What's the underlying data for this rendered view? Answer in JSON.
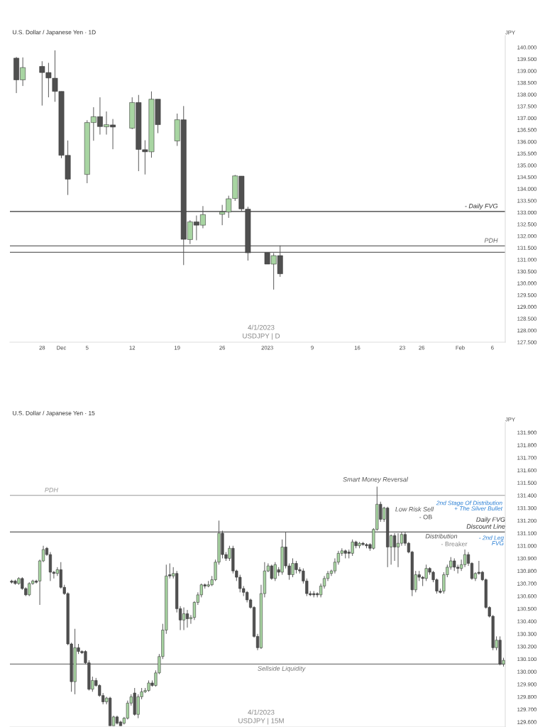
{
  "chart_data": [
    {
      "type": "candlestick",
      "title": "U.S. Dollar / Japanese Yen · 1D",
      "ylabel": "JPY",
      "x": [
        "2022-11-24",
        "2022-11-25",
        "2022-11-28",
        "2022-11-29",
        "2022-11-30",
        "2022-12-01",
        "2022-12-02",
        "2022-12-05",
        "2022-12-06",
        "2022-12-07",
        "2022-12-08",
        "2022-12-09",
        "2022-12-12",
        "2022-12-13",
        "2022-12-14",
        "2022-12-15",
        "2022-12-16",
        "2022-12-19",
        "2022-12-20",
        "2022-12-21",
        "2022-12-22",
        "2022-12-23",
        "2022-12-26",
        "2022-12-27",
        "2022-12-28",
        "2022-12-29",
        "2022-12-30",
        "2023-01-02",
        "2023-01-03",
        "2023-01-04"
      ],
      "ohlc": [
        [
          139.54,
          139.59,
          138.06,
          138.62
        ],
        [
          138.62,
          139.57,
          138.36,
          139.14
        ],
        [
          139.19,
          139.41,
          137.53,
          138.93
        ],
        [
          138.93,
          139.34,
          137.88,
          138.7
        ],
        [
          138.69,
          139.87,
          137.69,
          138.13
        ],
        [
          138.13,
          138.13,
          135.3,
          135.42
        ],
        [
          135.42,
          136.05,
          133.74,
          134.41
        ],
        [
          134.61,
          136.91,
          134.24,
          136.81
        ],
        [
          136.81,
          137.46,
          136.04,
          137.06
        ],
        [
          137.06,
          137.88,
          136.3,
          136.64
        ],
        [
          136.63,
          137.28,
          136.3,
          136.72
        ],
        [
          136.71,
          136.96,
          135.68,
          136.62
        ],
        [
          136.57,
          137.88,
          136.53,
          137.66
        ],
        [
          137.66,
          137.98,
          134.75,
          135.67
        ],
        [
          135.66,
          136.06,
          134.61,
          135.57
        ],
        [
          135.57,
          138.13,
          135.32,
          137.8
        ],
        [
          137.8,
          137.8,
          136.36,
          136.72
        ],
        [
          136.03,
          137.19,
          135.82,
          136.93
        ],
        [
          136.93,
          137.51,
          130.77,
          131.86
        ],
        [
          131.85,
          132.67,
          131.66,
          132.6
        ],
        [
          132.6,
          132.87,
          131.82,
          132.46
        ],
        [
          132.46,
          133.27,
          132.33,
          132.91
        ],
        [
          132.92,
          133.32,
          132.46,
          133.02
        ],
        [
          133.02,
          133.71,
          132.77,
          133.58
        ],
        [
          133.59,
          134.59,
          133.49,
          134.55
        ],
        [
          134.54,
          134.54,
          133.04,
          133.15
        ],
        [
          133.14,
          133.24,
          130.96,
          131.29
        ],
        [
          131.29,
          131.29,
          130.81,
          130.81
        ],
        [
          130.81,
          131.28,
          129.73,
          131.17
        ],
        [
          131.17,
          131.6,
          130.27,
          130.4
        ]
      ],
      "colors": [
        "#505050",
        "#a8d5a2",
        "#505050",
        "#505050",
        "#505050",
        "#505050",
        "#505050",
        "#a8d5a2",
        "#a8d5a2",
        "#505050",
        "#a8d5a2",
        "#505050",
        "#a8d5a2",
        "#505050",
        "#505050",
        "#a8d5a2",
        "#505050",
        "#a8d5a2",
        "#505050",
        "#a8d5a2",
        "#505050",
        "#a8d5a2",
        "#a8d5a2",
        "#a8d5a2",
        "#a8d5a2",
        "#505050",
        "#505050",
        "#505050",
        "#a8d5a2",
        "#505050"
      ],
      "xlim": [
        "2022-11-23",
        "2023-02-08"
      ],
      "xticks": [
        {
          "value": "2022-11-28",
          "label": "28"
        },
        {
          "value": "2022-12-01",
          "label": "Dec"
        },
        {
          "value": "2022-12-05",
          "label": "5"
        },
        {
          "value": "2022-12-12",
          "label": "12"
        },
        {
          "value": "2022-12-19",
          "label": "19"
        },
        {
          "value": "2022-12-26",
          "label": "26"
        },
        {
          "value": "2023-01-02",
          "label": "2023"
        },
        {
          "value": "2023-01-09",
          "label": "9"
        },
        {
          "value": "2023-01-16",
          "label": "16"
        },
        {
          "value": "2023-01-23",
          "label": "23"
        },
        {
          "value": "2023-01-26",
          "label": "26"
        },
        {
          "value": "2023-02-01",
          "label": "Feb"
        },
        {
          "value": "2023-02-06",
          "label": "6"
        }
      ],
      "ylim": [
        127.5,
        140.5
      ],
      "yticks": [
        {
          "value": 127.5,
          "label": "127.500"
        },
        {
          "value": 128,
          "label": "128.000"
        },
        {
          "value": 128.5,
          "label": "128.500"
        },
        {
          "value": 129,
          "label": "129.000"
        },
        {
          "value": 129.5,
          "label": "129.500"
        },
        {
          "value": 130,
          "label": "130.000"
        },
        {
          "value": 130.5,
          "label": "130.500"
        },
        {
          "value": 131,
          "label": "131.000"
        },
        {
          "value": 131.5,
          "label": "131.500"
        },
        {
          "value": 132,
          "label": "132.000"
        },
        {
          "value": 132.5,
          "label": "132.500"
        },
        {
          "value": 133,
          "label": "133.000"
        },
        {
          "value": 133.5,
          "label": "133.500"
        },
        {
          "value": 134,
          "label": "134.000"
        },
        {
          "value": 134.5,
          "label": "134.500"
        },
        {
          "value": 135,
          "label": "135.000"
        },
        {
          "value": 135.5,
          "label": "135.500"
        },
        {
          "value": 136,
          "label": "136.000"
        },
        {
          "value": 136.5,
          "label": "136.500"
        },
        {
          "value": 137,
          "label": "137.000"
        },
        {
          "value": 137.5,
          "label": "137.500"
        },
        {
          "value": 138,
          "label": "138.000"
        },
        {
          "value": 138.5,
          "label": "138.500"
        },
        {
          "value": 139,
          "label": "139.000"
        },
        {
          "value": 139.5,
          "label": "139.500"
        },
        {
          "value": 140,
          "label": "140.000"
        }
      ],
      "ref_lines": [
        {
          "axis": "y",
          "value": 133.04,
          "label": "- Daily FVG",
          "color": "#333333"
        },
        {
          "axis": "y",
          "value": 131.58,
          "label": "PDH",
          "color": "#666666"
        },
        {
          "axis": "y",
          "value": 131.31,
          "label": null,
          "color": "#666666"
        }
      ],
      "annotations": [
        "4/1/2023",
        "USDJPY | D"
      ]
    },
    {
      "type": "candlestick",
      "title": "U.S. Dollar / Japanese Yen · 15",
      "ylabel": "JPY",
      "categories": [
        null,
        null,
        null,
        null,
        null,
        null,
        null,
        null,
        null,
        null,
        null,
        null,
        null,
        null,
        null,
        null,
        null,
        null,
        null,
        null,
        null,
        null,
        null,
        null,
        null,
        null,
        null,
        null,
        null,
        null,
        null,
        null,
        null,
        null,
        null,
        null,
        null,
        null,
        null,
        null,
        null,
        null,
        null,
        null,
        null,
        null,
        null,
        null,
        null,
        null,
        null,
        null,
        null,
        null,
        null,
        null,
        null,
        null,
        null,
        null,
        null,
        null,
        null,
        null,
        null,
        null,
        null,
        null,
        null,
        null,
        null,
        null,
        null,
        null,
        null,
        null,
        null,
        null,
        null,
        null,
        null,
        null,
        null,
        null,
        null,
        null,
        null,
        null,
        null,
        null,
        null,
        null,
        null,
        null,
        null,
        null,
        null,
        null,
        null,
        null,
        null,
        null,
        null,
        null,
        null,
        null,
        null,
        null,
        null,
        null,
        null,
        null,
        null,
        null,
        null,
        null,
        null,
        null,
        null,
        null,
        null,
        null,
        null,
        null,
        null,
        null,
        null,
        null,
        null,
        null,
        null,
        null,
        null,
        null,
        null,
        null,
        null,
        null,
        null,
        null,
        null
      ],
      "ohlc": [
        [
          130.72,
          130.73,
          130.7,
          130.71
        ],
        [
          130.72,
          130.73,
          130.69,
          130.7
        ],
        [
          130.7,
          130.75,
          130.69,
          130.74
        ],
        [
          130.74,
          130.75,
          130.65,
          130.66
        ],
        [
          130.66,
          130.67,
          130.6,
          130.61
        ],
        [
          130.61,
          130.71,
          130.6,
          130.7
        ],
        [
          130.7,
          130.73,
          130.69,
          130.72
        ],
        [
          130.72,
          130.73,
          130.7,
          130.71
        ],
        [
          130.72,
          130.89,
          130.53,
          130.88
        ],
        [
          130.88,
          131.0,
          130.87,
          130.97
        ],
        [
          130.98,
          130.99,
          130.92,
          130.93
        ],
        [
          130.93,
          130.95,
          130.72,
          130.79
        ],
        [
          130.79,
          130.8,
          130.74,
          130.78
        ],
        [
          130.78,
          130.83,
          130.76,
          130.81
        ],
        [
          130.81,
          130.87,
          130.66,
          130.67
        ],
        [
          130.67,
          130.69,
          130.61,
          130.62
        ],
        [
          130.62,
          130.63,
          130.21,
          130.22
        ],
        [
          130.22,
          130.23,
          129.84,
          129.92
        ],
        [
          129.92,
          130.34,
          129.82,
          130.19
        ],
        [
          130.19,
          130.22,
          130.14,
          130.16
        ],
        [
          130.16,
          130.17,
          130.14,
          130.15
        ],
        [
          130.16,
          130.17,
          130.06,
          130.07
        ],
        [
          130.07,
          130.09,
          129.85,
          129.86
        ],
        [
          129.86,
          129.96,
          129.84,
          129.93
        ],
        [
          129.93,
          129.95,
          129.88,
          129.89
        ],
        [
          129.89,
          129.9,
          129.8,
          129.81
        ],
        [
          129.81,
          129.83,
          129.74,
          129.76
        ],
        [
          129.76,
          129.8,
          129.74,
          129.79
        ],
        [
          129.79,
          129.8,
          129.57,
          129.57
        ],
        [
          129.57,
          129.65,
          129.57,
          129.64
        ],
        [
          129.64,
          129.65,
          129.58,
          129.59
        ],
        [
          129.6,
          129.61,
          129.57,
          129.57
        ],
        [
          129.59,
          129.64,
          129.58,
          129.63
        ],
        [
          129.63,
          129.77,
          129.62,
          129.75
        ],
        [
          129.75,
          129.82,
          129.73,
          129.8
        ],
        [
          129.83,
          129.87,
          129.65,
          129.66
        ],
        [
          129.66,
          129.82,
          129.63,
          129.8
        ],
        [
          129.8,
          129.87,
          129.78,
          129.84
        ],
        [
          129.84,
          129.87,
          129.83,
          129.85
        ],
        [
          129.85,
          129.93,
          129.84,
          129.91
        ],
        [
          129.91,
          129.93,
          129.88,
          129.89
        ],
        [
          129.89,
          130.01,
          129.88,
          129.99
        ],
        [
          129.99,
          130.14,
          129.98,
          130.12
        ],
        [
          130.12,
          130.38,
          130.1,
          130.33
        ],
        [
          130.33,
          130.85,
          130.3,
          130.76
        ],
        [
          130.77,
          130.86,
          130.74,
          130.76
        ],
        [
          130.76,
          130.83,
          130.74,
          130.78
        ],
        [
          130.78,
          130.8,
          130.47,
          130.5
        ],
        [
          130.5,
          130.52,
          130.33,
          130.41
        ],
        [
          130.41,
          130.51,
          130.33,
          130.46
        ],
        [
          130.46,
          130.49,
          130.35,
          130.42
        ],
        [
          130.42,
          130.45,
          130.38,
          130.43
        ],
        [
          130.43,
          130.56,
          130.41,
          130.55
        ],
        [
          130.55,
          130.63,
          130.53,
          130.61
        ],
        [
          130.61,
          130.7,
          130.59,
          130.69
        ],
        [
          130.69,
          130.7,
          130.66,
          130.68
        ],
        [
          130.68,
          130.72,
          130.67,
          130.69
        ],
        [
          130.69,
          130.76,
          130.68,
          130.73
        ],
        [
          130.73,
          130.89,
          130.72,
          130.87
        ],
        [
          130.87,
          131.2,
          130.85,
          131.1
        ],
        [
          131.1,
          131.12,
          130.9,
          130.93
        ],
        [
          130.93,
          130.95,
          130.88,
          130.9
        ],
        [
          130.9,
          131.0,
          130.88,
          130.98
        ],
        [
          130.98,
          131.0,
          130.78,
          130.8
        ],
        [
          130.8,
          130.81,
          130.72,
          130.75
        ],
        [
          130.75,
          130.77,
          130.63,
          130.66
        ],
        [
          130.66,
          130.68,
          130.6,
          130.63
        ],
        [
          130.63,
          130.64,
          130.55,
          130.57
        ],
        [
          130.57,
          130.58,
          130.5,
          130.51
        ],
        [
          130.51,
          130.52,
          130.27,
          130.28
        ],
        [
          130.28,
          130.3,
          130.17,
          130.19
        ],
        [
          130.19,
          130.69,
          130.18,
          130.62
        ],
        [
          130.62,
          130.87,
          130.59,
          130.8
        ],
        [
          130.8,
          130.86,
          130.79,
          130.84
        ],
        [
          130.84,
          130.85,
          130.73,
          130.74
        ],
        [
          130.74,
          130.87,
          130.72,
          130.85
        ],
        [
          130.81,
          130.83,
          130.76,
          130.79
        ],
        [
          130.79,
          131.05,
          130.77,
          130.99
        ],
        [
          130.99,
          131.11,
          130.82,
          130.84
        ],
        [
          130.84,
          130.86,
          130.73,
          130.77
        ],
        [
          130.77,
          130.9,
          130.75,
          130.86
        ],
        [
          130.86,
          130.88,
          130.78,
          130.81
        ],
        [
          130.81,
          130.83,
          130.78,
          130.8
        ],
        [
          130.8,
          130.82,
          130.7,
          130.72
        ],
        [
          130.72,
          130.74,
          130.6,
          130.62
        ],
        [
          130.62,
          130.64,
          130.6,
          130.61
        ],
        [
          130.62,
          130.64,
          130.59,
          130.61
        ],
        [
          130.62,
          130.63,
          130.59,
          130.61
        ],
        [
          130.61,
          130.7,
          130.59,
          130.68
        ],
        [
          130.68,
          130.76,
          130.66,
          130.74
        ],
        [
          130.74,
          130.8,
          130.72,
          130.78
        ],
        [
          130.78,
          130.81,
          130.76,
          130.8
        ],
        [
          130.8,
          130.9,
          130.78,
          130.87
        ],
        [
          130.87,
          130.96,
          130.85,
          130.94
        ],
        [
          130.94,
          130.98,
          130.92,
          130.96
        ],
        [
          130.96,
          130.97,
          130.9,
          130.94
        ],
        [
          130.95,
          130.97,
          130.9,
          130.94
        ],
        [
          130.94,
          131.05,
          130.92,
          131.03
        ],
        [
          131.03,
          131.04,
          130.98,
          131.0
        ],
        [
          131.0,
          131.03,
          130.98,
          131.02
        ],
        [
          131.02,
          131.03,
          131.0,
          131.01
        ],
        [
          131.01,
          131.02,
          130.98,
          131.0
        ],
        [
          131.01,
          131.02,
          130.96,
          130.98
        ],
        [
          130.98,
          131.14,
          130.97,
          131.13
        ],
        [
          131.13,
          131.47,
          131.12,
          131.33
        ],
        [
          131.33,
          131.35,
          131.19,
          131.21
        ],
        [
          131.21,
          131.31,
          131.19,
          131.3
        ],
        [
          131.3,
          131.31,
          130.83,
          130.99
        ],
        [
          130.99,
          131.09,
          130.85,
          131.08
        ],
        [
          131.08,
          131.1,
          130.88,
          130.99
        ],
        [
          130.99,
          131.1,
          130.83,
          131.02
        ],
        [
          131.02,
          131.11,
          131.0,
          131.09
        ],
        [
          131.09,
          131.11,
          131.0,
          131.02
        ],
        [
          131.02,
          131.03,
          130.94,
          130.95
        ],
        [
          130.95,
          130.96,
          130.6,
          130.65
        ],
        [
          130.65,
          130.8,
          130.63,
          130.77
        ],
        [
          130.77,
          130.8,
          130.72,
          130.75
        ],
        [
          130.75,
          130.76,
          130.68,
          130.74
        ],
        [
          130.74,
          130.85,
          130.72,
          130.82
        ],
        [
          130.82,
          130.83,
          130.77,
          130.79
        ],
        [
          130.79,
          130.8,
          130.71,
          130.73
        ],
        [
          130.73,
          130.74,
          130.62,
          130.64
        ],
        [
          130.64,
          130.66,
          130.62,
          130.63
        ],
        [
          130.64,
          130.79,
          130.62,
          130.77
        ],
        [
          130.77,
          130.85,
          130.75,
          130.83
        ],
        [
          130.83,
          130.91,
          130.81,
          130.88
        ],
        [
          130.88,
          130.9,
          130.8,
          130.83
        ],
        [
          130.83,
          130.85,
          130.78,
          130.82
        ],
        [
          130.82,
          130.89,
          130.8,
          130.85
        ],
        [
          130.85,
          130.97,
          130.83,
          130.93
        ],
        [
          130.93,
          130.95,
          130.84,
          130.86
        ],
        [
          130.86,
          130.87,
          130.73,
          130.74
        ],
        [
          130.74,
          130.79,
          130.72,
          130.78
        ],
        [
          130.79,
          130.88,
          130.77,
          130.78
        ],
        [
          130.79,
          130.8,
          130.72,
          130.73
        ],
        [
          130.73,
          130.74,
          130.5,
          130.51
        ],
        [
          130.51,
          130.52,
          130.43,
          130.44
        ],
        [
          130.44,
          130.45,
          130.17,
          130.19
        ],
        [
          130.19,
          130.28,
          130.17,
          130.25
        ],
        [
          130.25,
          130.28,
          130.05,
          130.06
        ],
        [
          130.06,
          130.11,
          130.04,
          130.09
        ]
      ],
      "colors": [
        "#505050",
        "#505050",
        "#a8d5a2",
        "#505050",
        "#505050",
        "#a8d5a2",
        "#a8d5a2",
        "#505050",
        "#a8d5a2",
        "#a8d5a2",
        "#505050",
        "#505050",
        "#505050",
        "#a8d5a2",
        "#505050",
        "#505050",
        "#505050",
        "#505050",
        "#a8d5a2",
        "#505050",
        "#505050",
        "#505050",
        "#505050",
        "#a8d5a2",
        "#505050",
        "#505050",
        "#505050",
        "#a8d5a2",
        "#505050",
        "#a8d5a2",
        "#505050",
        "#505050",
        "#a8d5a2",
        "#a8d5a2",
        "#a8d5a2",
        "#505050",
        "#a8d5a2",
        "#a8d5a2",
        "#a8d5a2",
        "#a8d5a2",
        "#505050",
        "#a8d5a2",
        "#a8d5a2",
        "#a8d5a2",
        "#a8d5a2",
        "#505050",
        "#a8d5a2",
        "#505050",
        "#505050",
        "#a8d5a2",
        "#505050",
        "#a8d5a2",
        "#a8d5a2",
        "#a8d5a2",
        "#a8d5a2",
        "#505050",
        "#a8d5a2",
        "#a8d5a2",
        "#a8d5a2",
        "#a8d5a2",
        "#505050",
        "#505050",
        "#a8d5a2",
        "#505050",
        "#505050",
        "#505050",
        "#505050",
        "#505050",
        "#505050",
        "#505050",
        "#505050",
        "#a8d5a2",
        "#a8d5a2",
        "#a8d5a2",
        "#505050",
        "#a8d5a2",
        "#505050",
        "#a8d5a2",
        "#505050",
        "#505050",
        "#a8d5a2",
        "#505050",
        "#505050",
        "#505050",
        "#505050",
        "#505050",
        "#505050",
        "#505050",
        "#a8d5a2",
        "#a8d5a2",
        "#a8d5a2",
        "#a8d5a2",
        "#a8d5a2",
        "#a8d5a2",
        "#a8d5a2",
        "#505050",
        "#505050",
        "#a8d5a2",
        "#505050",
        "#a8d5a2",
        "#505050",
        "#505050",
        "#505050",
        "#a8d5a2",
        "#a8d5a2",
        "#505050",
        "#a8d5a2",
        "#505050",
        "#a8d5a2",
        "#505050",
        "#a8d5a2",
        "#a8d5a2",
        "#505050",
        "#505050",
        "#505050",
        "#a8d5a2",
        "#505050",
        "#505050",
        "#a8d5a2",
        "#505050",
        "#505050",
        "#505050",
        "#505050",
        "#a8d5a2",
        "#a8d5a2",
        "#a8d5a2",
        "#505050",
        "#505050",
        "#a8d5a2",
        "#a8d5a2",
        "#505050",
        "#505050",
        "#a8d5a2",
        "#505050",
        "#505050",
        "#505050",
        "#505050",
        "#505050",
        "#a8d5a2",
        "#505050",
        "#a8d5a2"
      ],
      "ylim": [
        129.56,
        131.98
      ],
      "yticks": [
        {
          "value": 129.6,
          "label": "129.600"
        },
        {
          "value": 129.7,
          "label": "129.700"
        },
        {
          "value": 129.8,
          "label": "129.800"
        },
        {
          "value": 129.9,
          "label": "129.900"
        },
        {
          "value": 130.0,
          "label": "130.000"
        },
        {
          "value": 130.1,
          "label": "130.100"
        },
        {
          "value": 130.2,
          "label": "130.200"
        },
        {
          "value": 130.3,
          "label": "130.300"
        },
        {
          "value": 130.4,
          "label": "130.400"
        },
        {
          "value": 130.5,
          "label": "130.500"
        },
        {
          "value": 130.6,
          "label": "130.600"
        },
        {
          "value": 130.7,
          "label": "130.700"
        },
        {
          "value": 130.8,
          "label": "130.800"
        },
        {
          "value": 130.9,
          "label": "130.900"
        },
        {
          "value": 131.0,
          "label": "131.000"
        },
        {
          "value": 131.1,
          "label": "131.100"
        },
        {
          "value": 131.2,
          "label": "131.200"
        },
        {
          "value": 131.3,
          "label": "131.300"
        },
        {
          "value": 131.4,
          "label": "131.400"
        },
        {
          "value": 131.5,
          "label": "131.500"
        },
        {
          "value": 131.6,
          "label": "131.600"
        },
        {
          "value": 131.7,
          "label": "131.700"
        },
        {
          "value": 131.8,
          "label": "131.800"
        },
        {
          "value": 131.9,
          "label": "131.900"
        }
      ],
      "tick_labels": "y",
      "ref_lines": [
        {
          "axis": "y",
          "value": 131.4,
          "label": "PDH",
          "color": "#999999"
        },
        {
          "axis": "y",
          "value": 131.11,
          "label": "Daily FVG\nDiscount Line",
          "color": "#333333"
        },
        {
          "axis": "y",
          "value": 130.06,
          "label": "Sellside Liquidity",
          "color": "#777777"
        }
      ],
      "annotations": [
        "Smart Money Reversal",
        "Low Risk Sell",
        "- OB",
        "Distribution",
        "- Breaker",
        "2nd Stage Of Distribution\n+ The Silver Bullet",
        "- 2nd Leg\nFVG",
        "4/1/2023",
        "USDJPY | 15M"
      ]
    }
  ]
}
